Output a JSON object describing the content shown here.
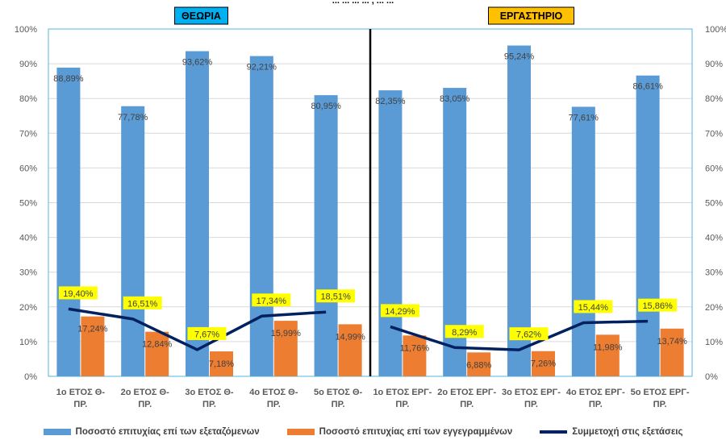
{
  "chart_data": {
    "type": "bar",
    "title_fragment": "... ... ... ... , ... ...",
    "categories": [
      "1ο ΕΤΟΣ Θ-ΠΡ.",
      "2ο ΕΤΟΣ Θ-ΠΡ.",
      "3ο ΕΤΟΣ Θ-ΠΡ.",
      "4ο ΕΤΟΣ Θ-ΠΡ.",
      "5ο ΕΤΟΣ Θ-ΠΡ.",
      "1ο ΕΤΟΣ ΕΡΓ-ΠΡ.",
      "2ο ΕΤΟΣ ΕΡΓ-ΠΡ.",
      "3ο ΕΤΟΣ ΕΡΓ-ΠΡ.",
      "4ο ΕΤΟΣ ΕΡΓ-ΠΡ.",
      "5ο ΕΤΟΣ ΕΡΓ-ΠΡ."
    ],
    "category_lines": [
      [
        "1ο ΕΤΟΣ Θ-",
        "ΠΡ."
      ],
      [
        "2ο ΕΤΟΣ Θ-",
        "ΠΡ."
      ],
      [
        "3ο ΕΤΟΣ Θ-",
        "ΠΡ."
      ],
      [
        "4ο ΕΤΟΣ Θ-",
        "ΠΡ."
      ],
      [
        "5ο ΕΤΟΣ Θ-",
        "ΠΡ."
      ],
      [
        "1ο ΕΤΟΣ ΕΡΓ-",
        "ΠΡ."
      ],
      [
        "2ο ΕΤΟΣ ΕΡΓ-",
        "ΠΡ."
      ],
      [
        "3ο ΕΤΟΣ ΕΡΓ-",
        "ΠΡ."
      ],
      [
        "4ο ΕΤΟΣ ΕΡΓ-",
        "ΠΡ."
      ],
      [
        "5ο ΕΤΟΣ ΕΡΓ-",
        "ΠΡ."
      ]
    ],
    "series": [
      {
        "name": "Ποσοστό επιτυχίας επί των εξεταζόμενων",
        "kind": "bar",
        "color": "#5b9bd5",
        "values": [
          88.89,
          77.78,
          93.62,
          92.21,
          80.95,
          82.35,
          83.05,
          95.24,
          77.61,
          86.61
        ],
        "labels": [
          "88,89%",
          "77,78%",
          "93,62%",
          "92,21%",
          "80,95%",
          "82,35%",
          "83,05%",
          "95,24%",
          "77,61%",
          "86,61%"
        ]
      },
      {
        "name": "Ποσοστό επιτυχίας επί των εγγεγραμμένων",
        "kind": "bar",
        "color": "#ed7d31",
        "values": [
          17.24,
          12.84,
          7.18,
          15.99,
          14.99,
          11.76,
          6.88,
          7.26,
          11.98,
          13.74
        ],
        "labels": [
          "17,24%",
          "12,84%",
          "7,18%",
          "15,99%",
          "14,99%",
          "11,76%",
          "6,88%",
          "7,26%",
          "11,98%",
          "13,74%"
        ]
      },
      {
        "name": "Συμμετοχή στις εξετάσεις",
        "kind": "line",
        "color": "#002060",
        "values": [
          19.4,
          16.51,
          7.67,
          17.34,
          18.51,
          14.29,
          8.29,
          7.62,
          15.44,
          15.86
        ],
        "labels": [
          "19,40%",
          "16,51%",
          "7,67%",
          "17,34%",
          "18,51%",
          "14,29%",
          "8,29%",
          "7,62%",
          "15,44%",
          "15,86%"
        ]
      }
    ],
    "groups": [
      {
        "label": "ΘΕΩΡΙΑ",
        "color": "#00b0f0"
      },
      {
        "label": "ΕΡΓΑΣΤΗΡΙΟ",
        "color": "#ffc000"
      }
    ],
    "ylim": [
      0,
      100
    ],
    "y_ticks": [
      "0%",
      "10%",
      "20%",
      "30%",
      "40%",
      "50%",
      "60%",
      "70%",
      "80%",
      "90%",
      "100%"
    ],
    "right_axis": true,
    "grid": true,
    "legend_position": "bottom",
    "colors": {
      "grid": "#d9d9d9",
      "plot_border": "#56b6e0",
      "divider": "#000000",
      "line_label_bg": "#ffff00",
      "axis_text": "#595959"
    }
  }
}
